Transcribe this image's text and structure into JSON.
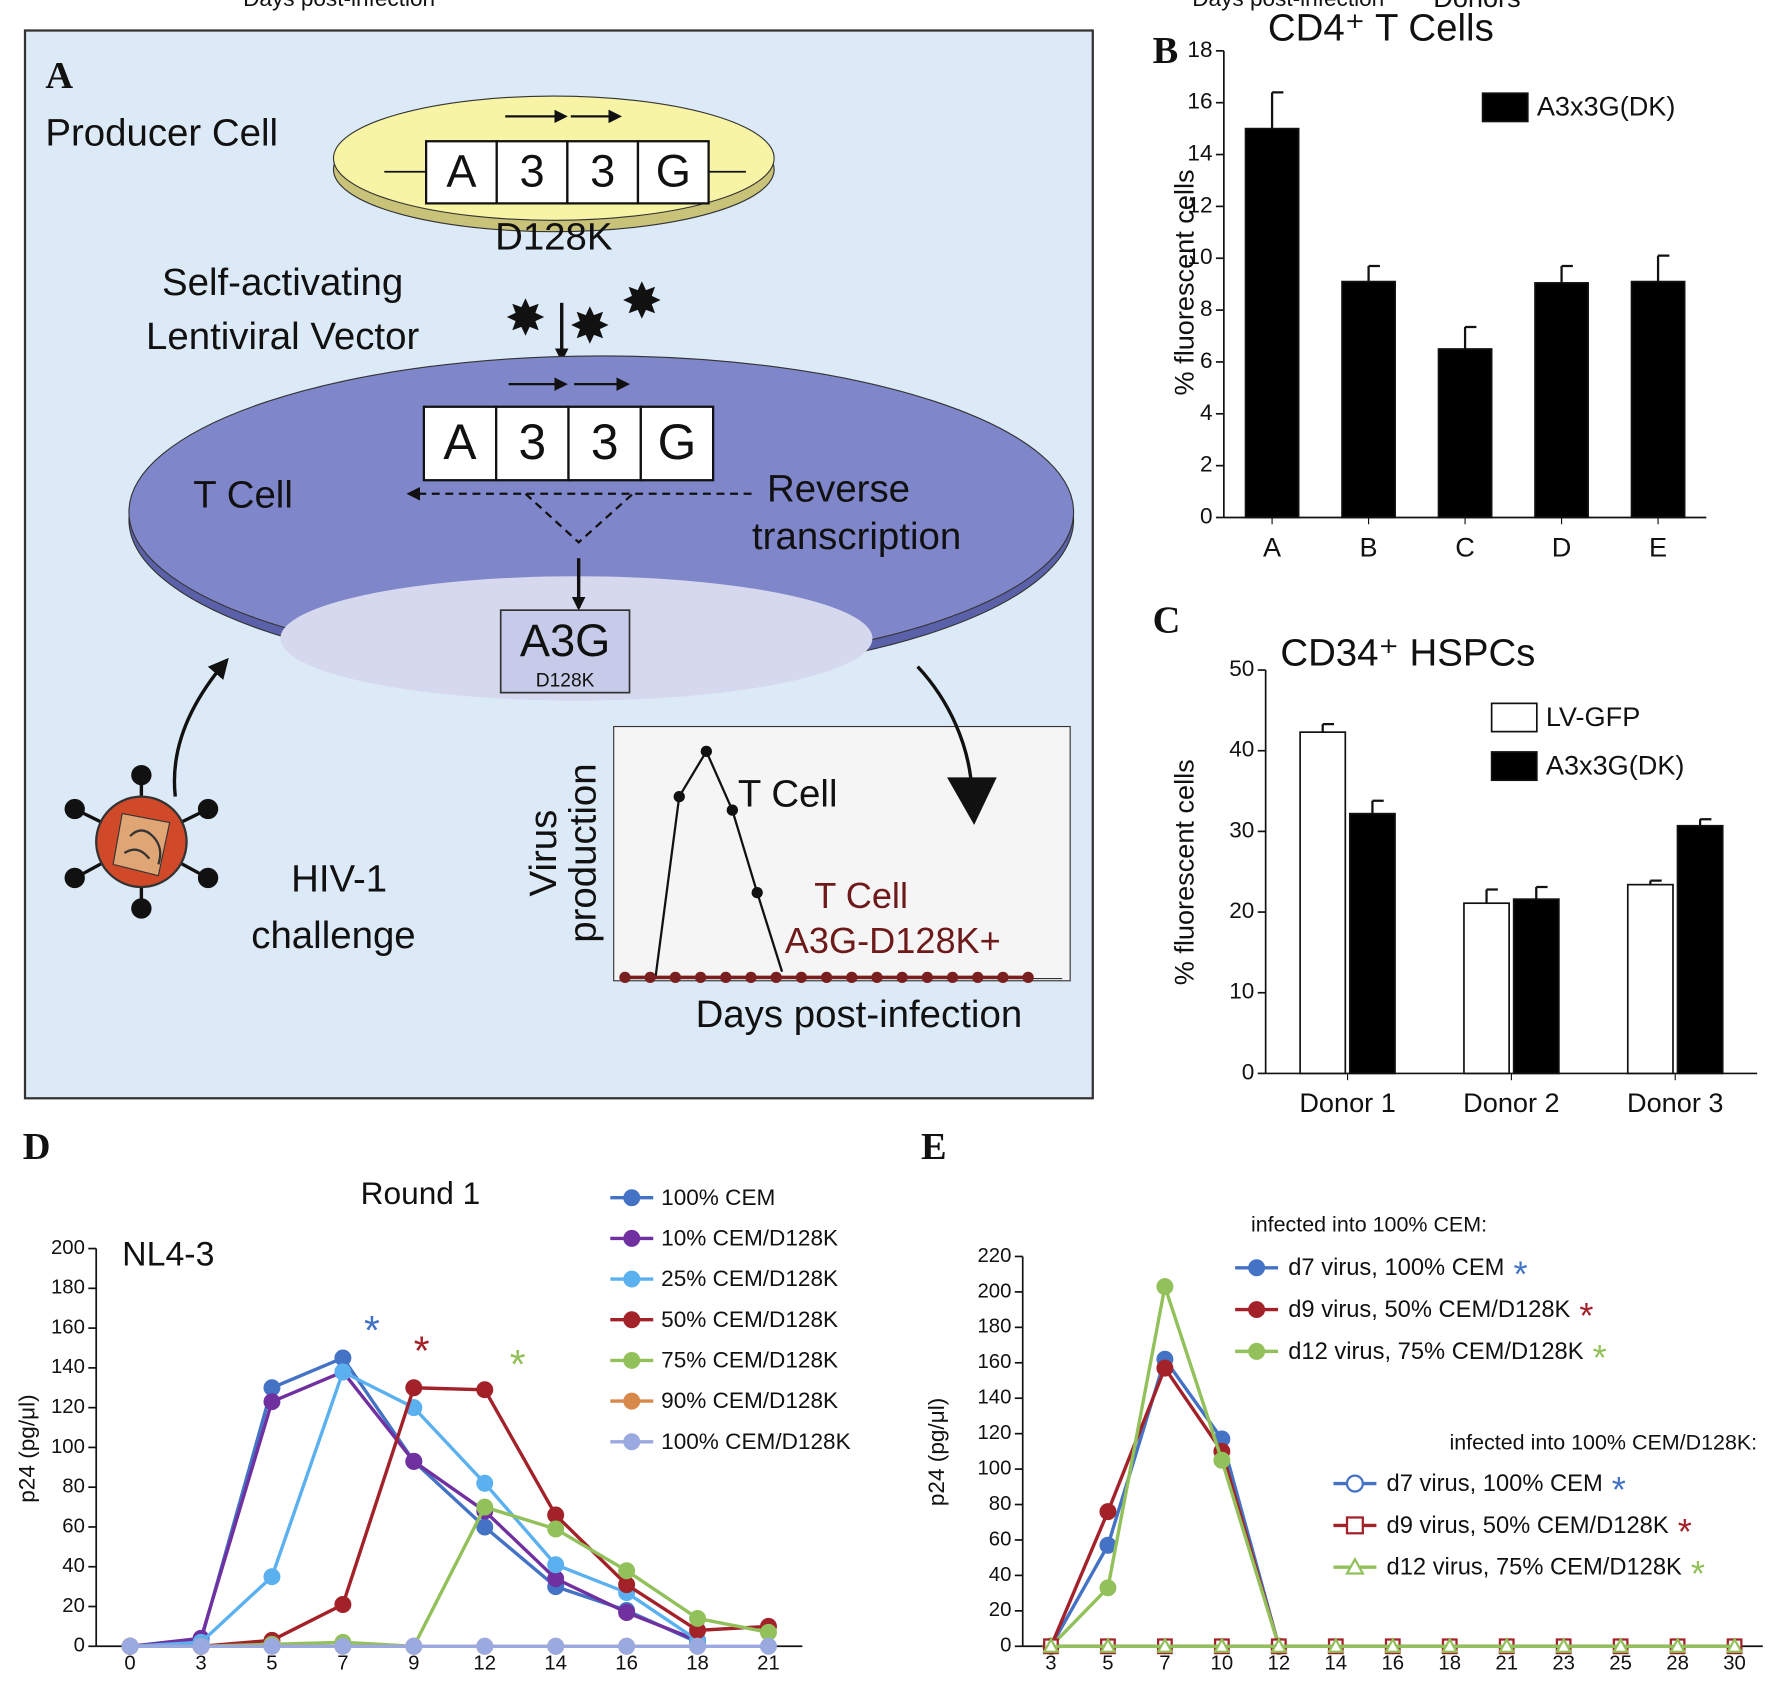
{
  "diagram": {
    "panel_label": "A",
    "producer": "Producer Cell",
    "vector_boxes": [
      "A",
      "3",
      "3",
      "G"
    ],
    "vector_mut": "D128K",
    "vector_text": [
      "Self-activating",
      "Lentiviral Vector"
    ],
    "tcell_boxes": [
      "A",
      "3",
      "3",
      "G"
    ],
    "tcell": "T Cell",
    "rt": [
      "Reverse",
      "transcription"
    ],
    "a3g": "A3G",
    "a3g_mut": "D128K",
    "hiv": [
      "HIV-1",
      "challenge"
    ],
    "inset_ylabel": [
      "Virus",
      "production"
    ],
    "inset_t": "T Cell",
    "inset_t2": [
      "T Cell",
      "A3G-D128K+"
    ],
    "inset_xlabel": "Days post-infection"
  },
  "chart_data": [
    {
      "type": "bar",
      "panel_label": "B",
      "title": "CD4⁺ T Cells",
      "xlabel": "Donors",
      "ylabel": "% fluorescent cells",
      "categories": [
        "A",
        "B",
        "C",
        "D",
        "E"
      ],
      "series": [
        {
          "name": "A3x3G(DK)",
          "color": "#000000",
          "values": [
            15,
            9.1,
            6.5,
            9.05,
            9.1
          ],
          "errors": [
            1.4,
            0.6,
            0.85,
            0.65,
            1.0
          ]
        }
      ],
      "ylim": [
        0,
        18
      ],
      "yticks": [
        0,
        2,
        4,
        6,
        8,
        10,
        12,
        14,
        16,
        18
      ]
    },
    {
      "type": "bar",
      "panel_label": "C",
      "title": "CD34⁺ HSPCs",
      "ylabel": "% fluorescent cells",
      "categories": [
        "Donor 1",
        "Donor 2",
        "Donor 3"
      ],
      "series": [
        {
          "name": "LV-GFP",
          "color": "#ffffff",
          "values": [
            42.3,
            21.1,
            23.4
          ],
          "errors": [
            1.0,
            1.7,
            0.5
          ]
        },
        {
          "name": "A3x3G(DK)",
          "color": "#000000",
          "values": [
            32.2,
            21.6,
            30.7
          ],
          "errors": [
            1.6,
            1.5,
            0.8
          ]
        }
      ],
      "ylim": [
        0,
        50
      ],
      "yticks": [
        0,
        10,
        20,
        30,
        40,
        50
      ]
    },
    {
      "type": "line",
      "panel_label": "D",
      "title": "Round 1",
      "annotation": "NL4-3",
      "xlabel": "Days post-infection",
      "ylabel": "p24 (pg/μl)",
      "categories": [
        "0",
        "3",
        "5",
        "7",
        "9",
        "12",
        "14",
        "16",
        "18",
        "21"
      ],
      "ylim": [
        0,
        200
      ],
      "yticks": [
        0,
        20,
        40,
        60,
        80,
        100,
        120,
        140,
        160,
        180,
        200
      ],
      "series": [
        {
          "name": "100% CEM",
          "color": "#4472c4",
          "marker": "circle",
          "values": [
            0,
            3,
            130,
            145,
            93,
            60,
            30,
            18,
            2,
            null
          ]
        },
        {
          "name": "10% CEM/D128K",
          "color": "#7030a0",
          "marker": "circle",
          "values": [
            0,
            4,
            123,
            138,
            93,
            68,
            34,
            17,
            3,
            null
          ]
        },
        {
          "name": "25% CEM/D128K",
          "color": "#5bb0f0",
          "marker": "circle",
          "values": [
            0,
            2,
            35,
            138,
            120,
            82,
            41,
            27,
            3,
            null
          ]
        },
        {
          "name": "50% CEM/D128K",
          "color": "#a3222a",
          "marker": "circle",
          "values": [
            0,
            0,
            3,
            21,
            130,
            129,
            66,
            31,
            8,
            10
          ]
        },
        {
          "name": "75% CEM/D128K",
          "color": "#92c05a",
          "marker": "circle",
          "values": [
            0,
            0,
            1,
            2,
            0,
            70,
            59,
            38,
            14,
            7
          ]
        },
        {
          "name": "90% CEM/D128K",
          "color": "#d8884a",
          "marker": "circle",
          "values": [
            0,
            0,
            0,
            0,
            0,
            0,
            0,
            0,
            0,
            null
          ]
        },
        {
          "name": "100% CEM/D128K",
          "color": "#9aa9e0",
          "marker": "circle",
          "values": [
            0,
            0,
            0,
            0,
            0,
            0,
            0,
            0,
            0,
            0
          ]
        }
      ],
      "annotations": [
        {
          "text": "*",
          "color": "#4472c4"
        },
        {
          "text": "*",
          "color": "#a3222a"
        },
        {
          "text": "*",
          "color": "#92c05a"
        }
      ]
    },
    {
      "type": "line",
      "panel_label": "E",
      "xlabel": "Days post-infection",
      "ylabel": "p24 (pg/μl)",
      "categories": [
        "3",
        "5",
        "7",
        "10",
        "12",
        "14",
        "16",
        "18",
        "21",
        "23",
        "25",
        "28",
        "30"
      ],
      "ylim": [
        0,
        220
      ],
      "yticks": [
        0,
        20,
        40,
        60,
        80,
        100,
        120,
        140,
        160,
        180,
        200,
        220
      ],
      "legend_groups": [
        "infected into 100% CEM:",
        "infected into 100% CEM/D128K:"
      ],
      "series": [
        {
          "name": "d7 virus, 100% CEM",
          "color": "#4472c4",
          "marker": "circle",
          "values": [
            0,
            57,
            162,
            117,
            0,
            null,
            null,
            null,
            null,
            null,
            null,
            null,
            null
          ]
        },
        {
          "name": "d9 virus, 50% CEM/D128K",
          "color": "#a3222a",
          "marker": "circle",
          "values": [
            0,
            76,
            157,
            110,
            0,
            null,
            null,
            null,
            null,
            null,
            null,
            null,
            null
          ]
        },
        {
          "name": "d12 virus, 75% CEM/D128K",
          "color": "#92c05a",
          "marker": "circle",
          "values": [
            0,
            33,
            203,
            105,
            0,
            null,
            null,
            null,
            null,
            null,
            null,
            null,
            null
          ]
        },
        {
          "name": "d7 virus, 100% CEM",
          "color": "#4472c4",
          "marker": "circle-open",
          "values": [
            0,
            0,
            0,
            0,
            0,
            0,
            0,
            0,
            0,
            0,
            0,
            0,
            0
          ]
        },
        {
          "name": "d9 virus, 50% CEM/D128K",
          "color": "#a3222a",
          "marker": "square-open",
          "values": [
            0,
            0,
            0,
            0,
            0,
            0,
            0,
            0,
            0,
            0,
            0,
            0,
            0
          ]
        },
        {
          "name": "d12 virus, 75% CEM/D128K",
          "color": "#92c05a",
          "marker": "triangle-open",
          "values": [
            0,
            0,
            0,
            0,
            0,
            0,
            0,
            0,
            0,
            0,
            0,
            0,
            0
          ]
        }
      ],
      "annotations": [
        {
          "text": "*",
          "color": "#4472c4"
        },
        {
          "text": "*",
          "color": "#a3222a"
        },
        {
          "text": "*",
          "color": "#92c05a"
        },
        {
          "text": "*",
          "color": "#4472c4"
        },
        {
          "text": "*",
          "color": "#a3222a"
        },
        {
          "text": "*",
          "color": "#92c05a"
        }
      ]
    }
  ]
}
